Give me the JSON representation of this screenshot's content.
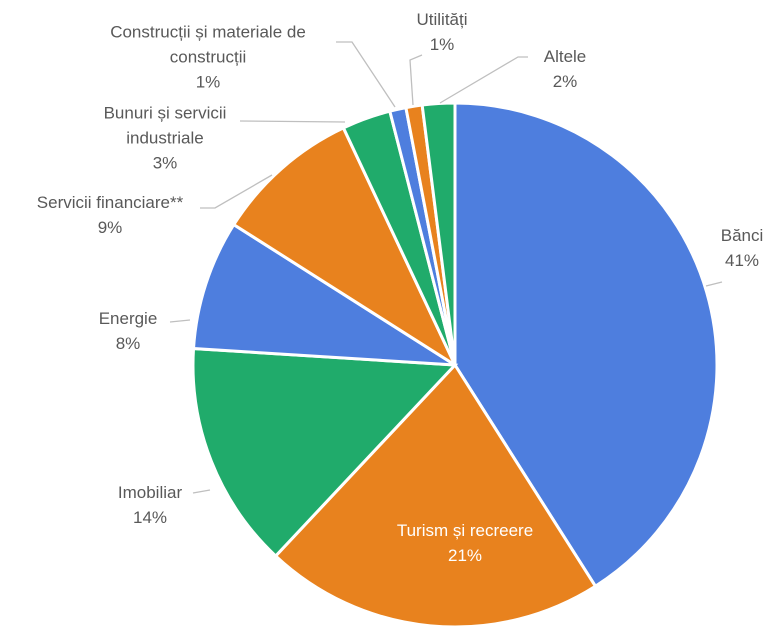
{
  "chart_data": {
    "type": "pie",
    "categories": [
      "Bănci",
      "Turism și recreere",
      "Imobiliar",
      "Energie",
      "Servicii financiare**",
      "Bunuri și servicii industriale",
      "Construcții și materiale de construcții",
      "Utilități",
      "Altele"
    ],
    "values": [
      41,
      21,
      14,
      8,
      9,
      3,
      1,
      1,
      2
    ],
    "value_labels": [
      "41%",
      "21%",
      "14%",
      "8%",
      "9%",
      "3%",
      "1%",
      "1%",
      "2%"
    ],
    "colors": [
      "#4e7ede",
      "#e8821e",
      "#20ab6b",
      "#4e7ede",
      "#e8821e",
      "#20ab6b",
      "#4e7ede",
      "#e8821e",
      "#20ab6b"
    ]
  }
}
